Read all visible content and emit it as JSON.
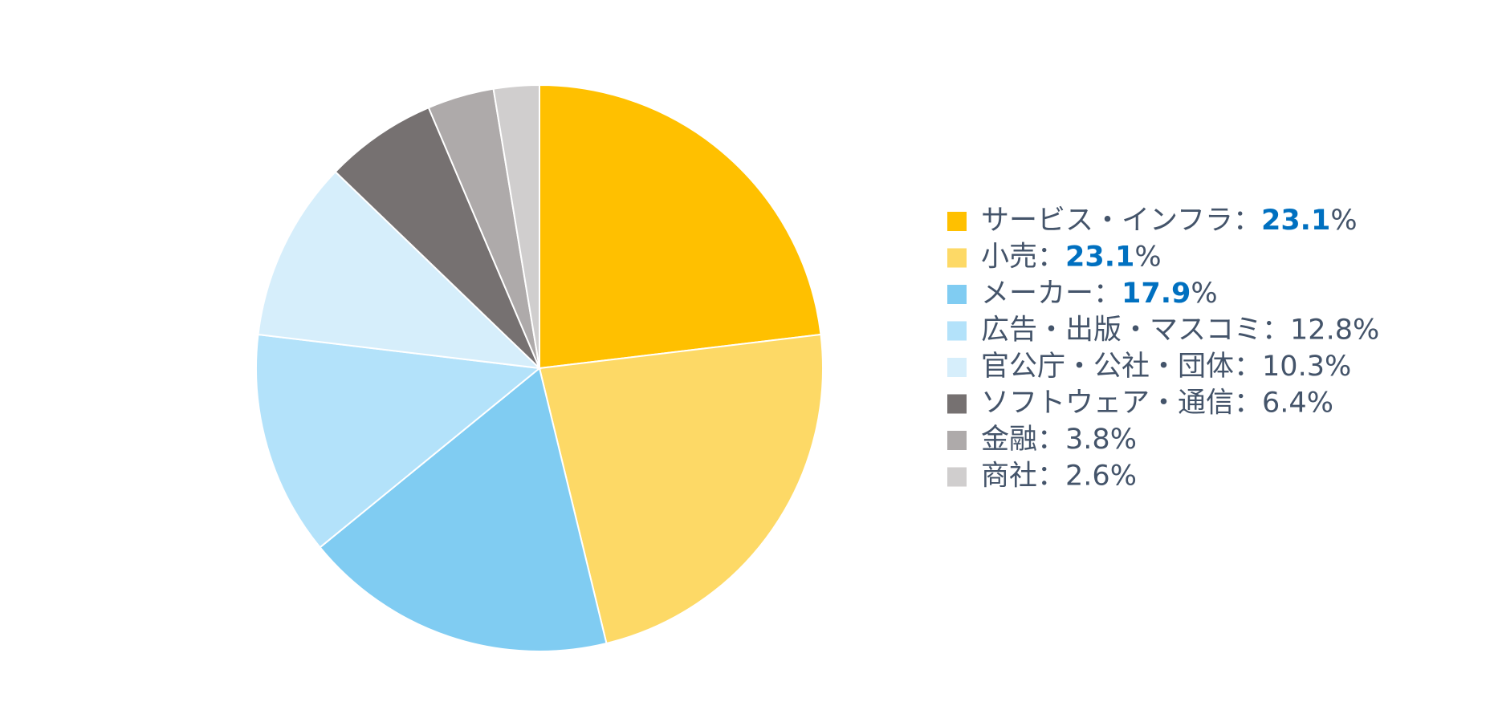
{
  "chart_data": {
    "type": "pie",
    "categories": [
      "サービス・インフラ",
      "小売",
      "メーカー",
      "広告・出版・マスコミ",
      "官公庁・公社・団体",
      "ソフトウェア・通信",
      "金融",
      "商社"
    ],
    "values": [
      23.1,
      23.1,
      17.9,
      12.8,
      10.3,
      6.4,
      3.8,
      2.6
    ],
    "colors": [
      "#ffc000",
      "#fdd966",
      "#80ccf2",
      "#b3e2fa",
      "#d6eefb",
      "#767171",
      "#aeaaaa",
      "#d0cece"
    ],
    "label_separator": "：",
    "unit": "%",
    "highlight": [
      true,
      true,
      true,
      false,
      false,
      false,
      false,
      false
    ],
    "highlight_color": "#0070c0",
    "legend": "right"
  }
}
